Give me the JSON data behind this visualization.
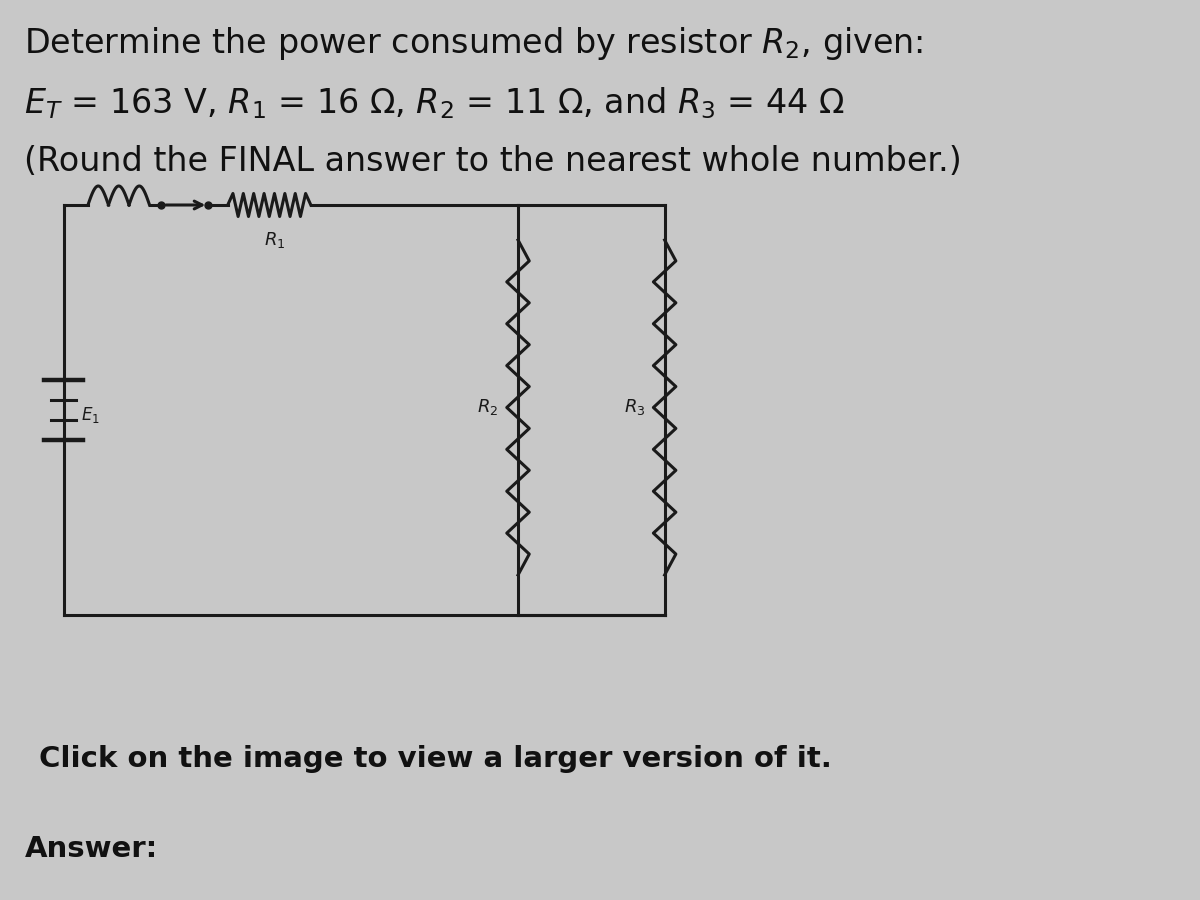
{
  "background_color": "#c8c8c8",
  "circuit_bg": "#d8d8d8",
  "title_line1": "Determine the power consumed by resistor $R_2$, given:",
  "title_line2": "$E_T$ = 163 V, $R_1$ = 16 Ω, $R_2$ = 11 Ω, and $R_3$ = 44 Ω",
  "title_line3": "(Round the FINAL answer to the nearest whole number.)",
  "footer": "Click on the image to view a larger version of it.",
  "footer2": "Answer:",
  "circuit_color": "#1a1a1a",
  "title_fontsize": 24,
  "footer_fontsize": 21,
  "answer_fontsize": 21
}
